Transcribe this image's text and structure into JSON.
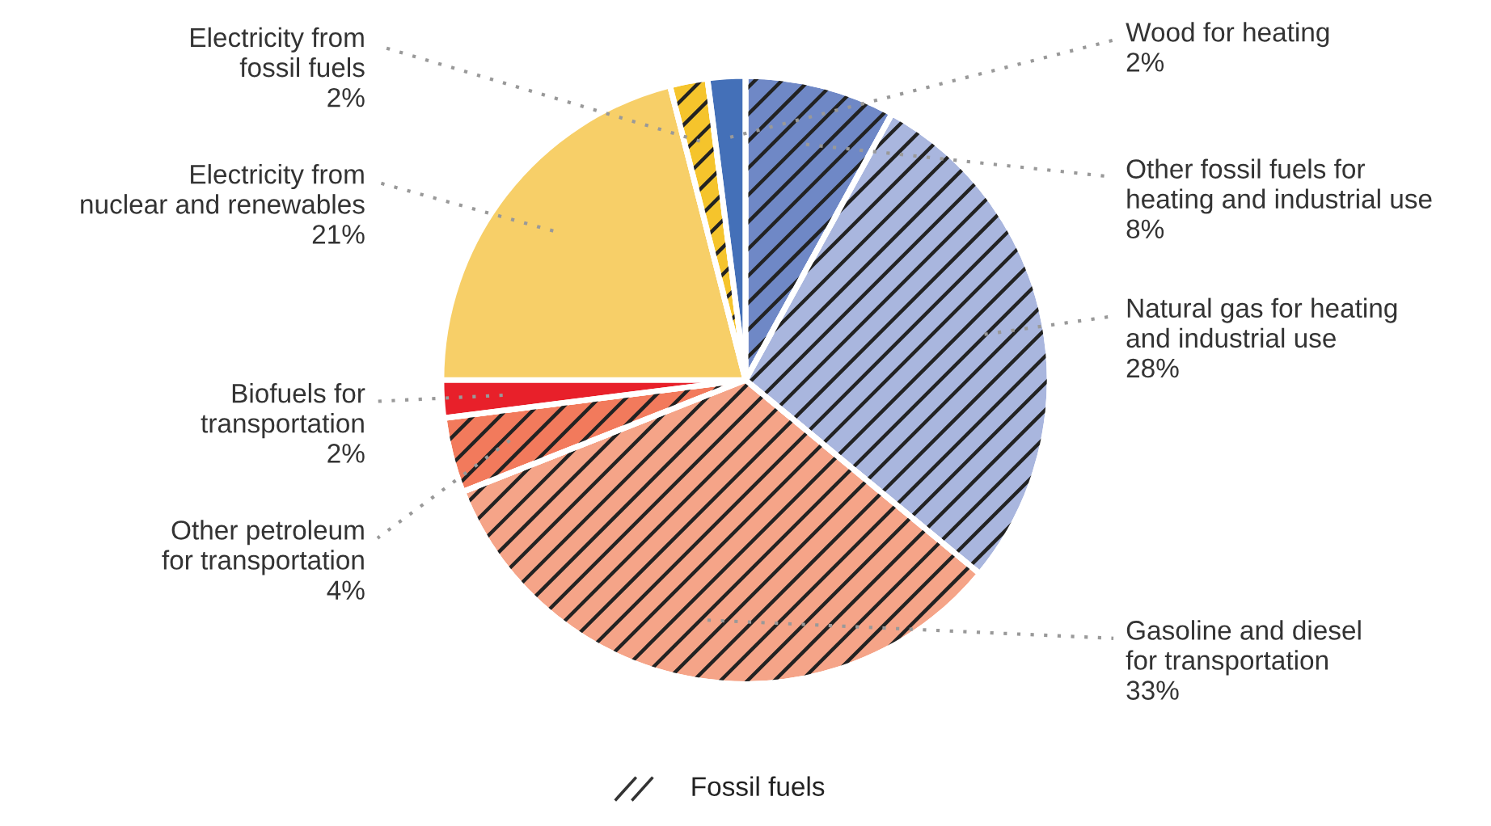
{
  "chart_data": {
    "type": "pie",
    "categories": [
      "Other fossil fuels for\nheating and industrial use",
      "Natural gas for heating\nand industrial use",
      "Gasoline and diesel\nfor transportation",
      "Other petroleum\nfor transportation",
      "Biofuels for\ntransportation",
      "Electricity from\nnuclear and renewables",
      "Electricity from\nfossil fuels",
      "Wood for heating"
    ],
    "values": [
      8,
      28,
      33,
      4,
      2,
      21,
      2,
      2
    ],
    "annotations": [
      "Fossil fuels"
    ],
    "value_labels": [
      "8%",
      "28%",
      "33%",
      "4%",
      "2%",
      "21%",
      "2%",
      "2%"
    ],
    "colors": [
      "#6f88c6",
      "#a9b6de",
      "#f5a488",
      "#f27a5c",
      "#e8202a",
      "#f7cf68",
      "#f5c42c",
      "#4470b8"
    ]
  }
}
